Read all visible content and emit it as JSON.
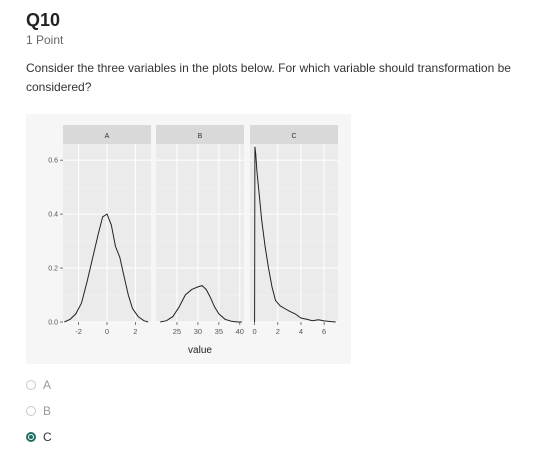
{
  "question": {
    "title": "Q10",
    "points": "1 Point",
    "text": "Consider the three variables in the plots below. For which variable should transformation be considered?"
  },
  "chart_data": {
    "type": "area",
    "xlabel": "value",
    "ylabel": "",
    "ylim": [
      0,
      0.66
    ],
    "y_ticks": [
      "0.0",
      "0.2",
      "0.4",
      "0.6"
    ],
    "grid": true,
    "panels": [
      {
        "name": "A",
        "xlim": [
          -3.1,
          3.1
        ],
        "x_ticks": [
          -2,
          0,
          2
        ],
        "x_tick_labels": [
          "-2",
          "0",
          "2"
        ],
        "x": [
          -3.0,
          -2.6,
          -2.2,
          -1.8,
          -1.4,
          -1.0,
          -0.6,
          -0.3,
          0.0,
          0.3,
          0.6,
          0.9,
          1.2,
          1.5,
          1.8,
          2.2,
          2.6,
          2.9
        ],
        "y": [
          0.0,
          0.01,
          0.03,
          0.07,
          0.15,
          0.24,
          0.33,
          0.39,
          0.4,
          0.36,
          0.28,
          0.24,
          0.17,
          0.1,
          0.05,
          0.02,
          0.005,
          0.0
        ]
      },
      {
        "name": "B",
        "xlim": [
          20,
          41
        ],
        "x_ticks": [
          25,
          30,
          35,
          40
        ],
        "x_tick_labels": [
          "25",
          "30",
          "35",
          "40"
        ],
        "x": [
          21,
          22.5,
          24,
          25.5,
          27,
          28.5,
          30,
          31,
          32,
          33,
          34,
          35,
          36.5,
          38,
          39.5,
          40.5
        ],
        "y": [
          0.0,
          0.005,
          0.02,
          0.055,
          0.1,
          0.12,
          0.13,
          0.135,
          0.12,
          0.09,
          0.055,
          0.03,
          0.01,
          0.003,
          0.0,
          0.0
        ]
      },
      {
        "name": "C",
        "xlim": [
          -0.4,
          7.2
        ],
        "x_ticks": [
          0,
          2,
          4,
          6
        ],
        "x_tick_labels": [
          "0",
          "2",
          "4",
          "6"
        ],
        "x": [
          0.0,
          0.02,
          0.1,
          0.2,
          0.4,
          0.6,
          0.9,
          1.2,
          1.5,
          1.8,
          2.2,
          2.6,
          3.0,
          3.5,
          4.0,
          4.5,
          5.0,
          5.5,
          6.0,
          6.5,
          7.0
        ],
        "y": [
          0.0,
          0.65,
          0.62,
          0.56,
          0.47,
          0.38,
          0.28,
          0.2,
          0.13,
          0.08,
          0.06,
          0.05,
          0.04,
          0.03,
          0.015,
          0.01,
          0.005,
          0.008,
          0.004,
          0.002,
          0.0
        ]
      }
    ]
  },
  "options": [
    {
      "label": "A",
      "selected": false
    },
    {
      "label": "B",
      "selected": false
    },
    {
      "label": "C",
      "selected": true
    }
  ],
  "colors": {
    "accent": "#1f6e65",
    "panel_bg": "#ebebeb",
    "strip_bg": "#d9d9d9",
    "line": "#222222"
  }
}
